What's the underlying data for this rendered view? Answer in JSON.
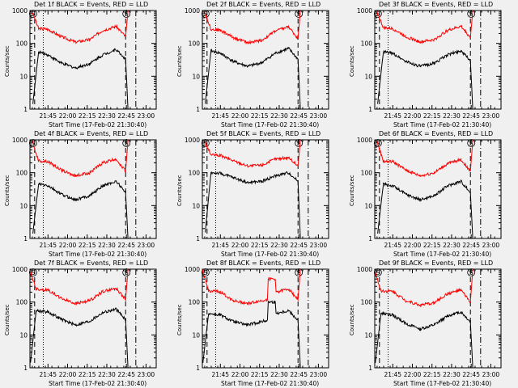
{
  "chart_data": [
    {
      "type": "line",
      "title": "Det 1f BLACK = Events, RED = LLD",
      "xlabel": "Start Time (17-Feb-02 21:30:40)",
      "ylabel": "Counts/sec",
      "x_tick_labels": [
        "21:45",
        "22:00",
        "22:15",
        "22:30",
        "22:45",
        "23:00"
      ],
      "y_tick_labels": [
        "1",
        "10",
        "100",
        "1000"
      ],
      "xlim": [
        "21:31",
        "23:08"
      ],
      "ylim": [
        1,
        1000
      ],
      "y_scale": "log",
      "series": [
        {
          "color": "#ff0000",
          "data_hour": [
            21.55,
            21.63,
            21.75,
            21.92,
            22.1,
            22.28,
            22.45,
            22.62,
            22.74,
            22.77
          ],
          "values": [
            900,
            280,
            270,
            160,
            110,
            130,
            250,
            330,
            160,
            1000
          ]
        },
        {
          "color": "#000000",
          "data_hour": [
            21.55,
            21.63,
            21.75,
            21.92,
            22.1,
            22.28,
            22.45,
            22.62,
            22.74,
            22.77
          ],
          "values": [
            0,
            55,
            45,
            25,
            18,
            24,
            45,
            65,
            33,
            0
          ]
        }
      ],
      "markers": {
        "dashed": [
          21.58,
          22.74
        ],
        "dotted": [
          21.69
        ],
        "dashdot": [
          22.87
        ],
        "saa_labels": [
          21.56,
          22.75
        ]
      }
    },
    {
      "type": "line",
      "title": "Det 2f BLACK = Events, RED = LLD",
      "xlabel": "Start Time (17-Feb-02 21:30:40)",
      "ylabel": "Counts/sec",
      "x_tick_labels": [
        "21:45",
        "22:00",
        "22:15",
        "22:30",
        "22:45",
        "23:00"
      ],
      "y_tick_labels": [
        "1",
        "10",
        "100",
        "1000"
      ],
      "xlim": [
        "21:31",
        "23:08"
      ],
      "ylim": [
        1,
        1000
      ],
      "y_scale": "log",
      "series": [
        {
          "color": "#ff0000",
          "data_hour": [
            21.55,
            21.63,
            21.75,
            21.92,
            22.1,
            22.28,
            22.45,
            22.62,
            22.74,
            22.77
          ],
          "values": [
            900,
            270,
            250,
            150,
            105,
            125,
            240,
            320,
            140,
            1000
          ]
        },
        {
          "color": "#000000",
          "data_hour": [
            21.55,
            21.63,
            21.75,
            21.92,
            22.1,
            22.28,
            22.45,
            22.62,
            22.74,
            22.77
          ],
          "values": [
            0,
            60,
            50,
            28,
            20,
            26,
            50,
            70,
            33,
            0
          ]
        }
      ],
      "markers": {
        "dashed": [
          21.58,
          22.74
        ],
        "dotted": [
          21.69
        ],
        "dashdot": [
          22.87
        ],
        "saa_labels": [
          21.56,
          22.75
        ]
      }
    },
    {
      "type": "line",
      "title": "Det 3f BLACK = Events, RED = LLD",
      "xlabel": "Start Time (17-Feb-02 21:30:40)",
      "ylabel": "Counts/sec",
      "x_tick_labels": [
        "21:45",
        "22:00",
        "22:15",
        "22:30",
        "22:45",
        "23:00"
      ],
      "y_tick_labels": [
        "1",
        "10",
        "100",
        "1000"
      ],
      "xlim": [
        "21:31",
        "23:08"
      ],
      "ylim": [
        1,
        1000
      ],
      "y_scale": "log",
      "series": [
        {
          "color": "#ff0000",
          "data_hour": [
            21.55,
            21.63,
            21.75,
            21.92,
            22.1,
            22.28,
            22.45,
            22.62,
            22.74,
            22.77
          ],
          "values": [
            900,
            300,
            280,
            160,
            110,
            130,
            250,
            330,
            150,
            1000
          ]
        },
        {
          "color": "#000000",
          "data_hour": [
            21.55,
            21.63,
            21.75,
            21.92,
            22.1,
            22.28,
            22.45,
            22.62,
            22.74,
            22.77
          ],
          "values": [
            0,
            55,
            50,
            28,
            20,
            25,
            45,
            60,
            30,
            0
          ]
        }
      ],
      "markers": {
        "dashed": [
          21.58,
          22.74
        ],
        "dotted": [
          21.69
        ],
        "dashdot": [
          22.87
        ],
        "saa_labels": [
          21.56,
          22.75
        ]
      }
    },
    {
      "type": "line",
      "title": "Det 4f BLACK = Events, RED = LLD",
      "xlabel": "Start Time (17-Feb-02 21:30:40)",
      "ylabel": "Counts/sec",
      "x_tick_labels": [
        "21:45",
        "22:00",
        "22:15",
        "22:30",
        "22:45",
        "23:00"
      ],
      "y_tick_labels": [
        "1",
        "10",
        "100",
        "1000"
      ],
      "xlim": [
        "21:31",
        "23:08"
      ],
      "ylim": [
        1,
        1000
      ],
      "y_scale": "log",
      "series": [
        {
          "color": "#ff0000",
          "data_hour": [
            21.55,
            21.63,
            21.75,
            21.92,
            22.1,
            22.28,
            22.45,
            22.62,
            22.74,
            22.77
          ],
          "values": [
            900,
            230,
            220,
            120,
            80,
            100,
            200,
            260,
            110,
            1000
          ]
        },
        {
          "color": "#000000",
          "data_hour": [
            21.55,
            21.63,
            21.75,
            21.92,
            22.1,
            22.28,
            22.45,
            22.62,
            22.74,
            22.77
          ],
          "values": [
            0,
            45,
            40,
            22,
            15,
            20,
            40,
            55,
            25,
            0
          ]
        }
      ],
      "markers": {
        "dashed": [
          21.58,
          22.74
        ],
        "dotted": [
          21.69
        ],
        "dashdot": [
          22.87
        ],
        "saa_labels": [
          21.56,
          22.75
        ]
      }
    },
    {
      "type": "line",
      "title": "Det 5f BLACK = Events, RED = LLD",
      "xlabel": "Start Time (17-Feb-02 21:30:40)",
      "ylabel": "Counts/sec",
      "x_tick_labels": [
        "21:45",
        "22:00",
        "22:15",
        "22:30",
        "22:45",
        "23:00"
      ],
      "y_tick_labels": [
        "1",
        "10",
        "100",
        "1000"
      ],
      "xlim": [
        "21:31",
        "23:08"
      ],
      "ylim": [
        1,
        1000
      ],
      "y_scale": "log",
      "series": [
        {
          "color": "#ff0000",
          "data_hour": [
            21.55,
            21.63,
            21.75,
            21.92,
            22.1,
            22.28,
            22.45,
            22.62,
            22.74,
            22.77
          ],
          "values": [
            900,
            350,
            330,
            230,
            160,
            170,
            260,
            290,
            160,
            1000
          ]
        },
        {
          "color": "#000000",
          "data_hour": [
            21.55,
            21.63,
            21.75,
            21.92,
            22.1,
            22.28,
            22.45,
            22.62,
            22.74,
            22.77
          ],
          "values": [
            0,
            100,
            95,
            70,
            50,
            55,
            80,
            100,
            55,
            0
          ]
        }
      ],
      "markers": {
        "dashed": [
          21.58,
          22.74
        ],
        "dotted": [
          21.69
        ],
        "dashdot": [
          22.87
        ],
        "saa_labels": [
          21.56,
          22.75
        ]
      }
    },
    {
      "type": "line",
      "title": "Det 6f BLACK = Events, RED = LLD",
      "xlabel": "Start Time (17-Feb-02 21:30:40)",
      "ylabel": "Counts/sec",
      "x_tick_labels": [
        "21:45",
        "22:00",
        "22:15",
        "22:30",
        "22:45",
        "23:00"
      ],
      "y_tick_labels": [
        "1",
        "10",
        "100",
        "1000"
      ],
      "xlim": [
        "21:31",
        "23:08"
      ],
      "ylim": [
        1,
        1000
      ],
      "y_scale": "log",
      "series": [
        {
          "color": "#ff0000",
          "data_hour": [
            21.55,
            21.63,
            21.75,
            21.92,
            22.1,
            22.28,
            22.45,
            22.62,
            22.74,
            22.77
          ],
          "values": [
            900,
            220,
            220,
            120,
            80,
            100,
            190,
            250,
            110,
            1000
          ]
        },
        {
          "color": "#000000",
          "data_hour": [
            21.55,
            21.63,
            21.75,
            21.92,
            22.1,
            22.28,
            22.45,
            22.62,
            22.74,
            22.77
          ],
          "values": [
            0,
            45,
            40,
            22,
            15,
            20,
            40,
            55,
            25,
            0
          ]
        }
      ],
      "markers": {
        "dashed": [
          21.58,
          22.74
        ],
        "dotted": [
          21.69
        ],
        "dashdot": [
          22.87
        ],
        "saa_labels": [
          21.56,
          22.75
        ]
      }
    },
    {
      "type": "line",
      "title": "Det 7f BLACK = Events, RED = LLD",
      "xlabel": "Start Time (17-Feb-02 21:30:40)",
      "ylabel": "Counts/sec",
      "x_tick_labels": [
        "21:45",
        "22:00",
        "22:15",
        "22:30",
        "22:45",
        "23:00"
      ],
      "y_tick_labels": [
        "1",
        "10",
        "100",
        "1000"
      ],
      "xlim": [
        "21:31",
        "23:08"
      ],
      "ylim": [
        1,
        1000
      ],
      "y_scale": "log",
      "series": [
        {
          "color": "#ff0000",
          "data_hour": [
            21.52,
            21.6,
            21.75,
            21.92,
            22.1,
            22.28,
            22.45,
            22.62,
            22.74,
            22.77
          ],
          "values": [
            900,
            250,
            230,
            130,
            90,
            110,
            210,
            260,
            120,
            1000
          ]
        },
        {
          "color": "#000000",
          "data_hour": [
            21.52,
            21.6,
            21.75,
            21.92,
            22.1,
            22.28,
            22.45,
            22.62,
            22.74,
            22.77
          ],
          "values": [
            0,
            55,
            50,
            30,
            20,
            26,
            48,
            60,
            30,
            0
          ]
        }
      ],
      "markers": {
        "dashed": [
          21.58,
          22.74
        ],
        "dotted": [
          21.69
        ],
        "dashdot": [
          22.87
        ],
        "saa_labels": [
          21.56,
          22.75
        ]
      }
    },
    {
      "type": "line",
      "title": "Det 8f BLACK = Events, RED = LLD",
      "xlabel": "Start Time (17-Feb-02 21:30:40)",
      "ylabel": "Counts/sec",
      "x_tick_labels": [
        "21:45",
        "22:00",
        "22:15",
        "22:30",
        "22:45",
        "23:00"
      ],
      "y_tick_labels": [
        "1",
        "10",
        "100",
        "1000"
      ],
      "xlim": [
        "21:31",
        "23:08"
      ],
      "ylim": [
        1,
        1000
      ],
      "y_scale": "log",
      "series": [
        {
          "color": "#ff0000",
          "data_hour": [
            21.52,
            21.6,
            21.75,
            21.92,
            22.1,
            22.35,
            22.36,
            22.45,
            22.46,
            22.62,
            22.74,
            22.77
          ],
          "values": [
            900,
            220,
            200,
            110,
            90,
            120,
            500,
            500,
            200,
            250,
            120,
            1000
          ]
        },
        {
          "color": "#000000",
          "data_hour": [
            21.52,
            21.6,
            21.75,
            21.92,
            22.1,
            22.35,
            22.36,
            22.45,
            22.46,
            22.62,
            22.74,
            22.77
          ],
          "values": [
            0,
            45,
            40,
            25,
            20,
            28,
            100,
            100,
            45,
            55,
            28,
            0
          ]
        }
      ],
      "markers": {
        "dashed": [
          21.58,
          22.74
        ],
        "dotted": [
          21.69
        ],
        "dashdot": [
          22.87
        ],
        "saa_labels": [
          21.56,
          22.75
        ]
      }
    },
    {
      "type": "line",
      "title": "Det 9f BLACK = Events, RED = LLD",
      "xlabel": "Start Time (17-Feb-02 21:30:40)",
      "ylabel": "Counts/sec",
      "x_tick_labels": [
        "21:45",
        "22:00",
        "22:15",
        "22:30",
        "22:45",
        "23:00"
      ],
      "y_tick_labels": [
        "1",
        "10",
        "100",
        "1000"
      ],
      "xlim": [
        "21:31",
        "23:08"
      ],
      "ylim": [
        1,
        1000
      ],
      "y_scale": "log",
      "series": [
        {
          "color": "#ff0000",
          "data_hour": [
            21.52,
            21.6,
            21.75,
            21.92,
            22.1,
            22.28,
            22.45,
            22.62,
            22.74,
            22.77
          ],
          "values": [
            900,
            220,
            210,
            110,
            80,
            95,
            180,
            230,
            100,
            1000
          ]
        },
        {
          "color": "#000000",
          "data_hour": [
            21.52,
            21.6,
            21.75,
            21.92,
            22.1,
            22.28,
            22.45,
            22.62,
            22.74,
            22.77
          ],
          "values": [
            0,
            45,
            40,
            22,
            15,
            20,
            38,
            50,
            25,
            0
          ]
        }
      ],
      "markers": {
        "dashed": [
          21.58,
          22.74
        ],
        "dotted": [
          21.69
        ],
        "dashdot": [
          22.87
        ],
        "saa_labels": [
          21.56,
          22.75
        ]
      }
    }
  ]
}
